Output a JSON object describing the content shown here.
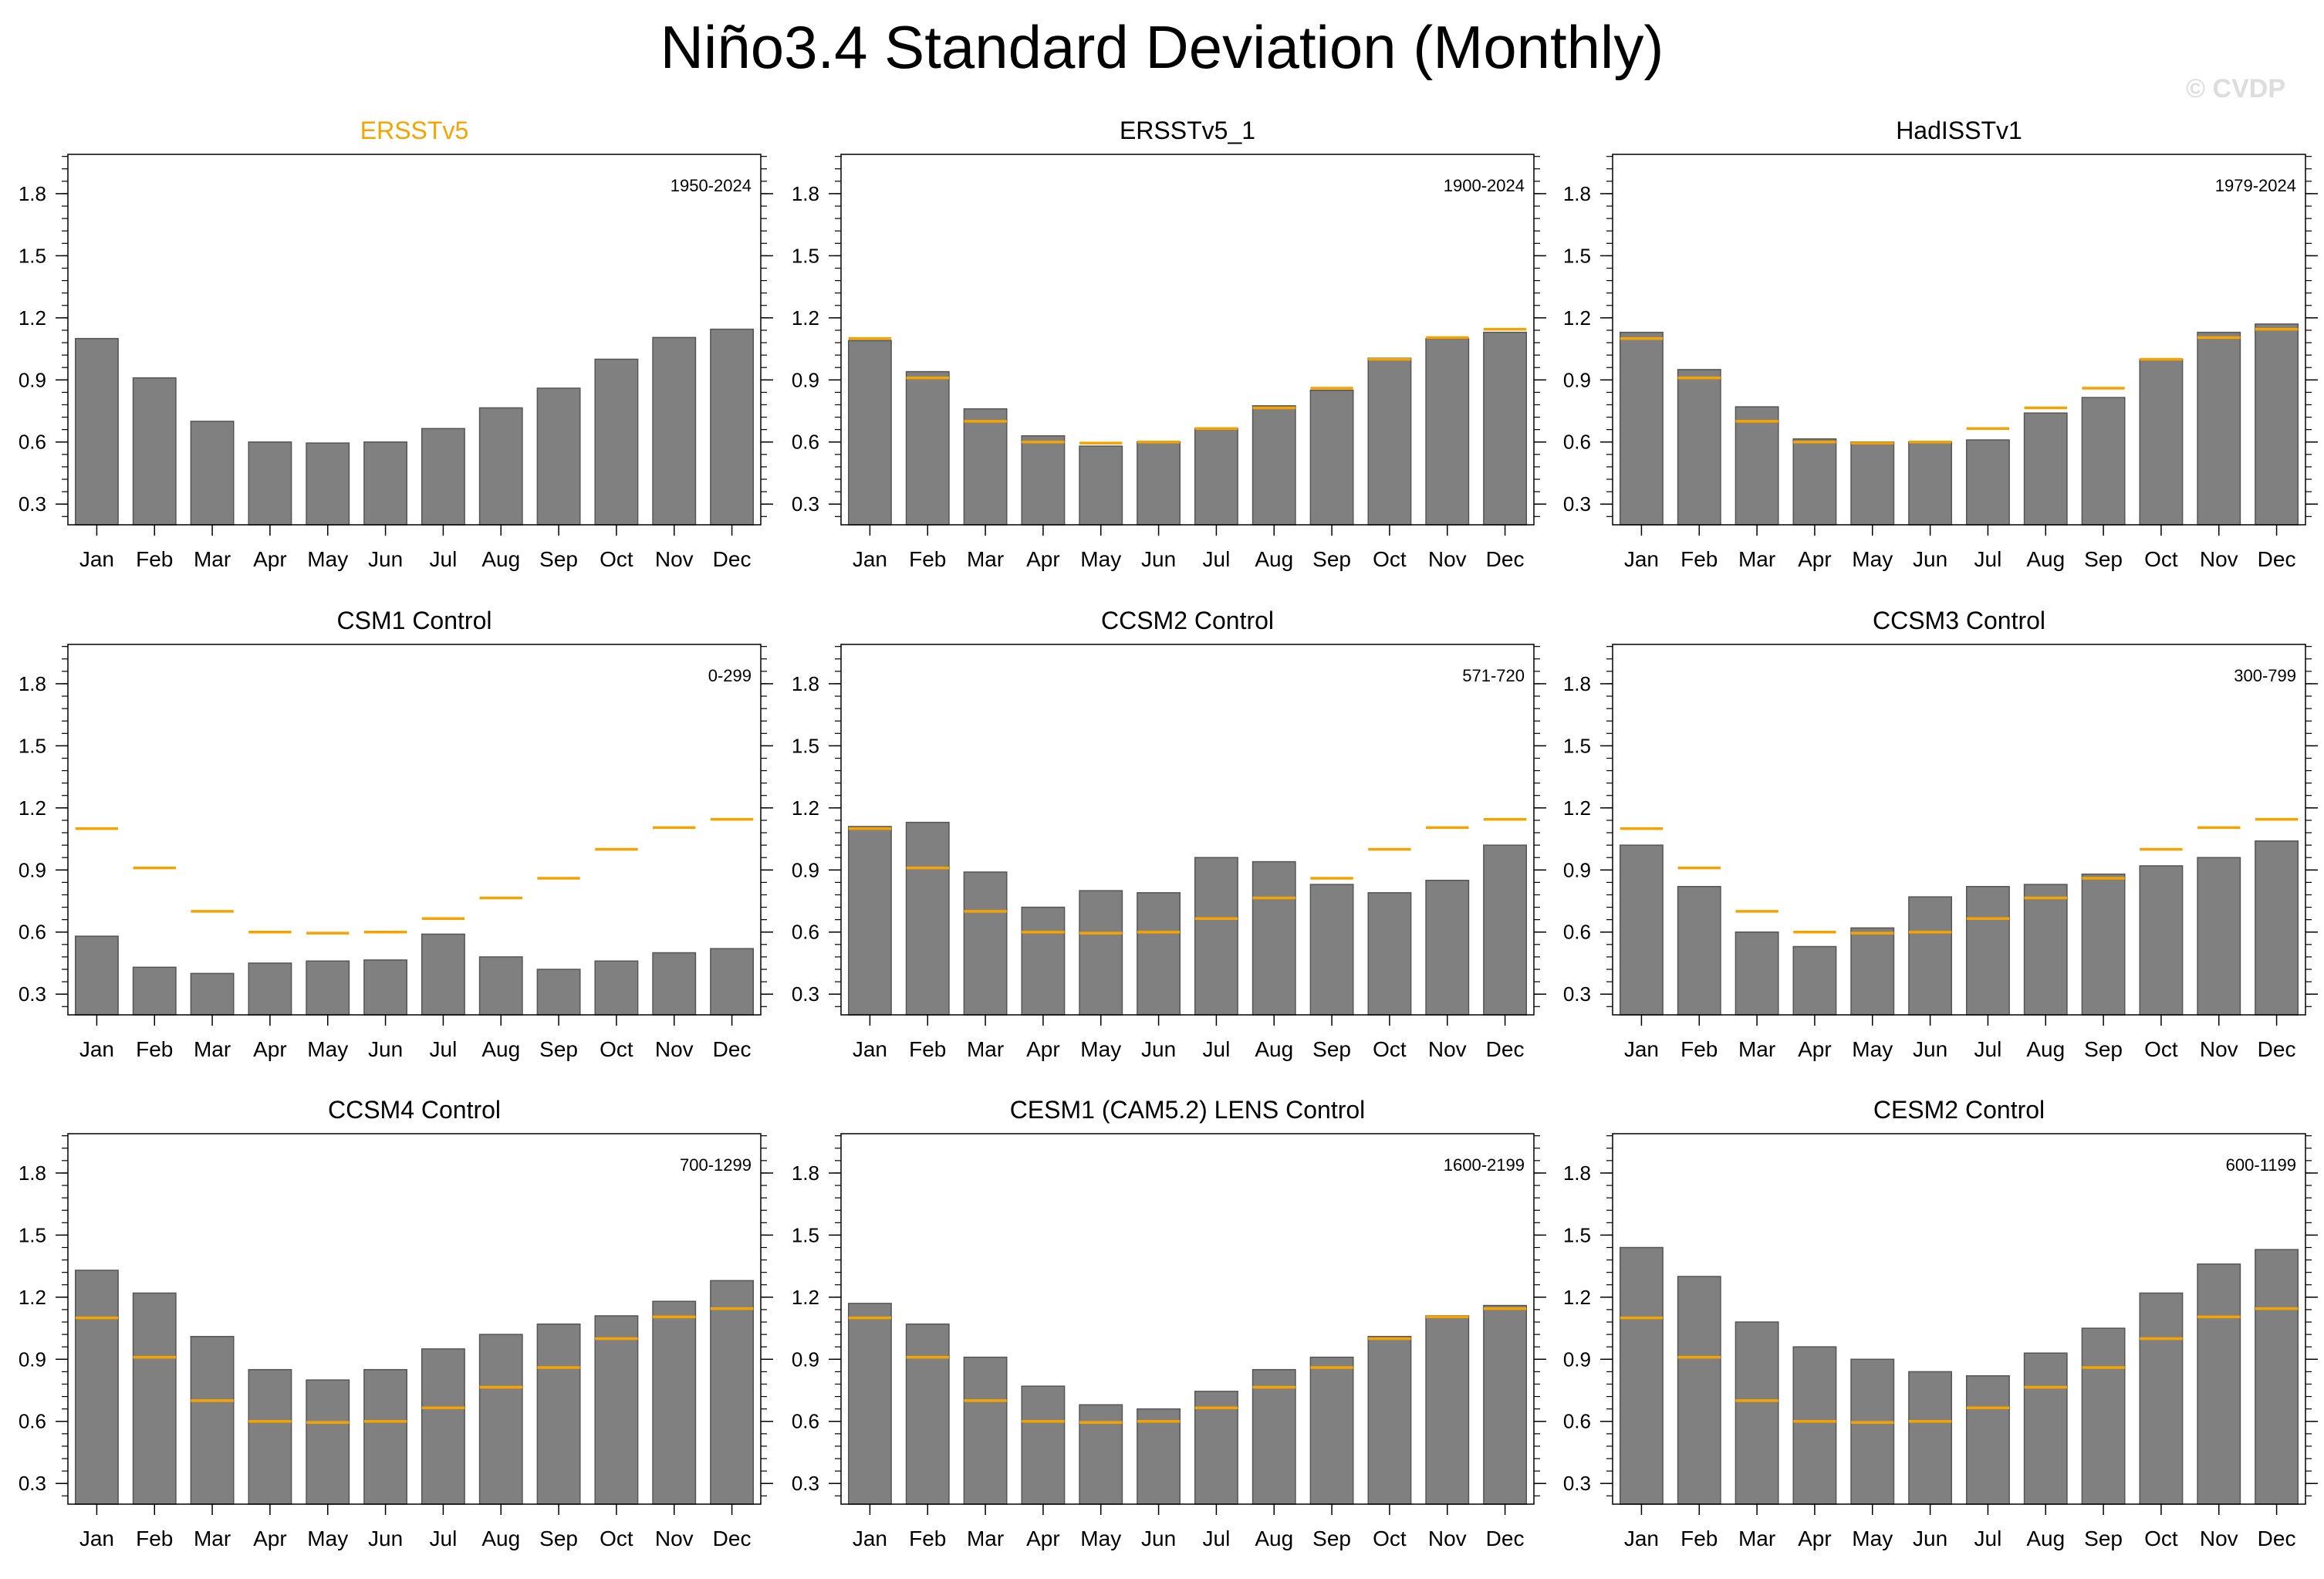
{
  "title": "Niño3.4 Standard Deviation (Monthly)",
  "watermark": "© CVDP",
  "colors": {
    "bar": "#808080",
    "bar_edge": "#555555",
    "reference_marker": "#F5A300",
    "highlight_title": "#F5A300",
    "text": "#000000",
    "watermark": "#DDDDDD"
  },
  "chart_data": [
    {
      "type": "bar",
      "title": "ERSSTv5",
      "title_highlight": true,
      "period": "1950-2024",
      "categories": [
        "Jan",
        "Feb",
        "Mar",
        "Apr",
        "May",
        "Jun",
        "Jul",
        "Aug",
        "Sep",
        "Oct",
        "Nov",
        "Dec"
      ],
      "values": [
        1.1,
        0.91,
        0.7,
        0.6,
        0.595,
        0.6,
        0.665,
        0.765,
        0.86,
        1.0,
        1.105,
        1.145
      ],
      "reference": null,
      "ylim": [
        0.2,
        1.99
      ],
      "yticks": [
        "0.3",
        "0.6",
        "0.9",
        "1.2",
        "1.5",
        "1.8"
      ]
    },
    {
      "type": "bar",
      "title": "ERSSTv5_1",
      "title_highlight": false,
      "period": "1900-2024",
      "categories": [
        "Jan",
        "Feb",
        "Mar",
        "Apr",
        "May",
        "Jun",
        "Jul",
        "Aug",
        "Sep",
        "Oct",
        "Nov",
        "Dec"
      ],
      "values": [
        1.09,
        0.94,
        0.76,
        0.63,
        0.58,
        0.6,
        0.665,
        0.775,
        0.85,
        1.005,
        1.1,
        1.13
      ],
      "reference": [
        1.1,
        0.91,
        0.7,
        0.6,
        0.595,
        0.6,
        0.665,
        0.765,
        0.86,
        1.0,
        1.105,
        1.145
      ],
      "ylim": [
        0.2,
        1.99
      ],
      "yticks": [
        "0.3",
        "0.6",
        "0.9",
        "1.2",
        "1.5",
        "1.8"
      ]
    },
    {
      "type": "bar",
      "title": "HadISSTv1",
      "title_highlight": false,
      "period": "1979-2024",
      "categories": [
        "Jan",
        "Feb",
        "Mar",
        "Apr",
        "May",
        "Jun",
        "Jul",
        "Aug",
        "Sep",
        "Oct",
        "Nov",
        "Dec"
      ],
      "values": [
        1.13,
        0.95,
        0.77,
        0.615,
        0.6,
        0.6,
        0.61,
        0.74,
        0.815,
        1.0,
        1.13,
        1.17
      ],
      "reference": [
        1.1,
        0.91,
        0.7,
        0.6,
        0.595,
        0.6,
        0.665,
        0.765,
        0.86,
        1.0,
        1.105,
        1.145
      ],
      "ylim": [
        0.2,
        1.99
      ],
      "yticks": [
        "0.3",
        "0.6",
        "0.9",
        "1.2",
        "1.5",
        "1.8"
      ]
    },
    {
      "type": "bar",
      "title": "CSM1 Control",
      "title_highlight": false,
      "period": "0-299",
      "categories": [
        "Jan",
        "Feb",
        "Mar",
        "Apr",
        "May",
        "Jun",
        "Jul",
        "Aug",
        "Sep",
        "Oct",
        "Nov",
        "Dec"
      ],
      "values": [
        0.58,
        0.43,
        0.4,
        0.45,
        0.46,
        0.465,
        0.59,
        0.48,
        0.42,
        0.46,
        0.5,
        0.52
      ],
      "reference": [
        1.1,
        0.91,
        0.7,
        0.6,
        0.595,
        0.6,
        0.665,
        0.765,
        0.86,
        1.0,
        1.105,
        1.145
      ],
      "ylim": [
        0.2,
        1.99
      ],
      "yticks": [
        "0.3",
        "0.6",
        "0.9",
        "1.2",
        "1.5",
        "1.8"
      ]
    },
    {
      "type": "bar",
      "title": "CCSM2 Control",
      "title_highlight": false,
      "period": "571-720",
      "categories": [
        "Jan",
        "Feb",
        "Mar",
        "Apr",
        "May",
        "Jun",
        "Jul",
        "Aug",
        "Sep",
        "Oct",
        "Nov",
        "Dec"
      ],
      "values": [
        1.11,
        1.13,
        0.89,
        0.72,
        0.8,
        0.79,
        0.96,
        0.94,
        0.83,
        0.79,
        0.85,
        1.02
      ],
      "reference": [
        1.1,
        0.91,
        0.7,
        0.6,
        0.595,
        0.6,
        0.665,
        0.765,
        0.86,
        1.0,
        1.105,
        1.145
      ],
      "ylim": [
        0.2,
        1.99
      ],
      "yticks": [
        "0.3",
        "0.6",
        "0.9",
        "1.2",
        "1.5",
        "1.8"
      ]
    },
    {
      "type": "bar",
      "title": "CCSM3 Control",
      "title_highlight": false,
      "period": "300-799",
      "categories": [
        "Jan",
        "Feb",
        "Mar",
        "Apr",
        "May",
        "Jun",
        "Jul",
        "Aug",
        "Sep",
        "Oct",
        "Nov",
        "Dec"
      ],
      "values": [
        1.02,
        0.82,
        0.6,
        0.53,
        0.62,
        0.77,
        0.82,
        0.83,
        0.88,
        0.92,
        0.96,
        1.04
      ],
      "reference": [
        1.1,
        0.91,
        0.7,
        0.6,
        0.595,
        0.6,
        0.665,
        0.765,
        0.86,
        1.0,
        1.105,
        1.145
      ],
      "ylim": [
        0.2,
        1.99
      ],
      "yticks": [
        "0.3",
        "0.6",
        "0.9",
        "1.2",
        "1.5",
        "1.8"
      ]
    },
    {
      "type": "bar",
      "title": "CCSM4 Control",
      "title_highlight": false,
      "period": "700-1299",
      "categories": [
        "Jan",
        "Feb",
        "Mar",
        "Apr",
        "May",
        "Jun",
        "Jul",
        "Aug",
        "Sep",
        "Oct",
        "Nov",
        "Dec"
      ],
      "values": [
        1.33,
        1.22,
        1.01,
        0.85,
        0.8,
        0.85,
        0.95,
        1.02,
        1.07,
        1.11,
        1.18,
        1.28
      ],
      "reference": [
        1.1,
        0.91,
        0.7,
        0.6,
        0.595,
        0.6,
        0.665,
        0.765,
        0.86,
        1.0,
        1.105,
        1.145
      ],
      "ylim": [
        0.2,
        1.99
      ],
      "yticks": [
        "0.3",
        "0.6",
        "0.9",
        "1.2",
        "1.5",
        "1.8"
      ]
    },
    {
      "type": "bar",
      "title": "CESM1 (CAM5.2) LENS Control",
      "title_highlight": false,
      "period": "1600-2199",
      "categories": [
        "Jan",
        "Feb",
        "Mar",
        "Apr",
        "May",
        "Jun",
        "Jul",
        "Aug",
        "Sep",
        "Oct",
        "Nov",
        "Dec"
      ],
      "values": [
        1.17,
        1.07,
        0.91,
        0.77,
        0.68,
        0.66,
        0.745,
        0.85,
        0.91,
        1.01,
        1.11,
        1.16
      ],
      "reference": [
        1.1,
        0.91,
        0.7,
        0.6,
        0.595,
        0.6,
        0.665,
        0.765,
        0.86,
        1.0,
        1.105,
        1.145
      ],
      "ylim": [
        0.2,
        1.99
      ],
      "yticks": [
        "0.3",
        "0.6",
        "0.9",
        "1.2",
        "1.5",
        "1.8"
      ]
    },
    {
      "type": "bar",
      "title": "CESM2 Control",
      "title_highlight": false,
      "period": "600-1199",
      "categories": [
        "Jan",
        "Feb",
        "Mar",
        "Apr",
        "May",
        "Jun",
        "Jul",
        "Aug",
        "Sep",
        "Oct",
        "Nov",
        "Dec"
      ],
      "values": [
        1.44,
        1.3,
        1.08,
        0.96,
        0.9,
        0.84,
        0.82,
        0.93,
        1.05,
        1.22,
        1.36,
        1.43
      ],
      "reference": [
        1.1,
        0.91,
        0.7,
        0.6,
        0.595,
        0.6,
        0.665,
        0.765,
        0.86,
        1.0,
        1.105,
        1.145
      ],
      "ylim": [
        0.2,
        1.99
      ],
      "yticks": [
        "0.3",
        "0.6",
        "0.9",
        "1.2",
        "1.5",
        "1.8"
      ]
    }
  ]
}
